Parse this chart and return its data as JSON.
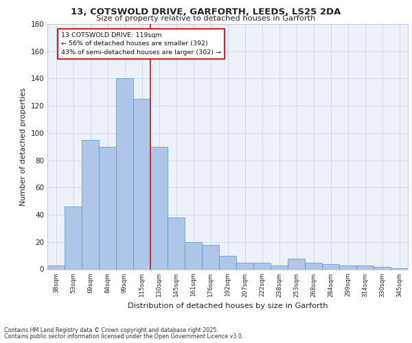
{
  "title1": "13, COTSWOLD DRIVE, GARFORTH, LEEDS, LS25 2DA",
  "title2": "Size of property relative to detached houses in Garforth",
  "xlabel": "Distribution of detached houses by size in Garforth",
  "ylabel": "Number of detached properties",
  "categories": [
    "38sqm",
    "53sqm",
    "69sqm",
    "84sqm",
    "99sqm",
    "115sqm",
    "130sqm",
    "145sqm",
    "161sqm",
    "176sqm",
    "192sqm",
    "207sqm",
    "222sqm",
    "238sqm",
    "253sqm",
    "268sqm",
    "284sqm",
    "299sqm",
    "314sqm",
    "330sqm",
    "345sqm"
  ],
  "values": [
    3,
    46,
    95,
    90,
    140,
    125,
    90,
    38,
    20,
    18,
    10,
    5,
    5,
    3,
    8,
    5,
    4,
    3,
    3,
    2,
    1
  ],
  "bar_color": "#aec6e8",
  "bar_edge_color": "#5a8fc2",
  "grid_color": "#d0d8e8",
  "background_color": "#edf2fa",
  "vline_x": 5.5,
  "vline_color": "#cc2222",
  "annotation_text": "13 COTSWOLD DRIVE: 119sqm\n← 56% of detached houses are smaller (392)\n43% of semi-detached houses are larger (302) →",
  "annotation_box_color": "#ffffff",
  "annotation_box_edge": "#cc2222",
  "ylim": [
    0,
    180
  ],
  "yticks": [
    0,
    20,
    40,
    60,
    80,
    100,
    120,
    140,
    160,
    180
  ],
  "footer1": "Contains HM Land Registry data © Crown copyright and database right 2025.",
  "footer2": "Contains public sector information licensed under the Open Government Licence v3.0."
}
